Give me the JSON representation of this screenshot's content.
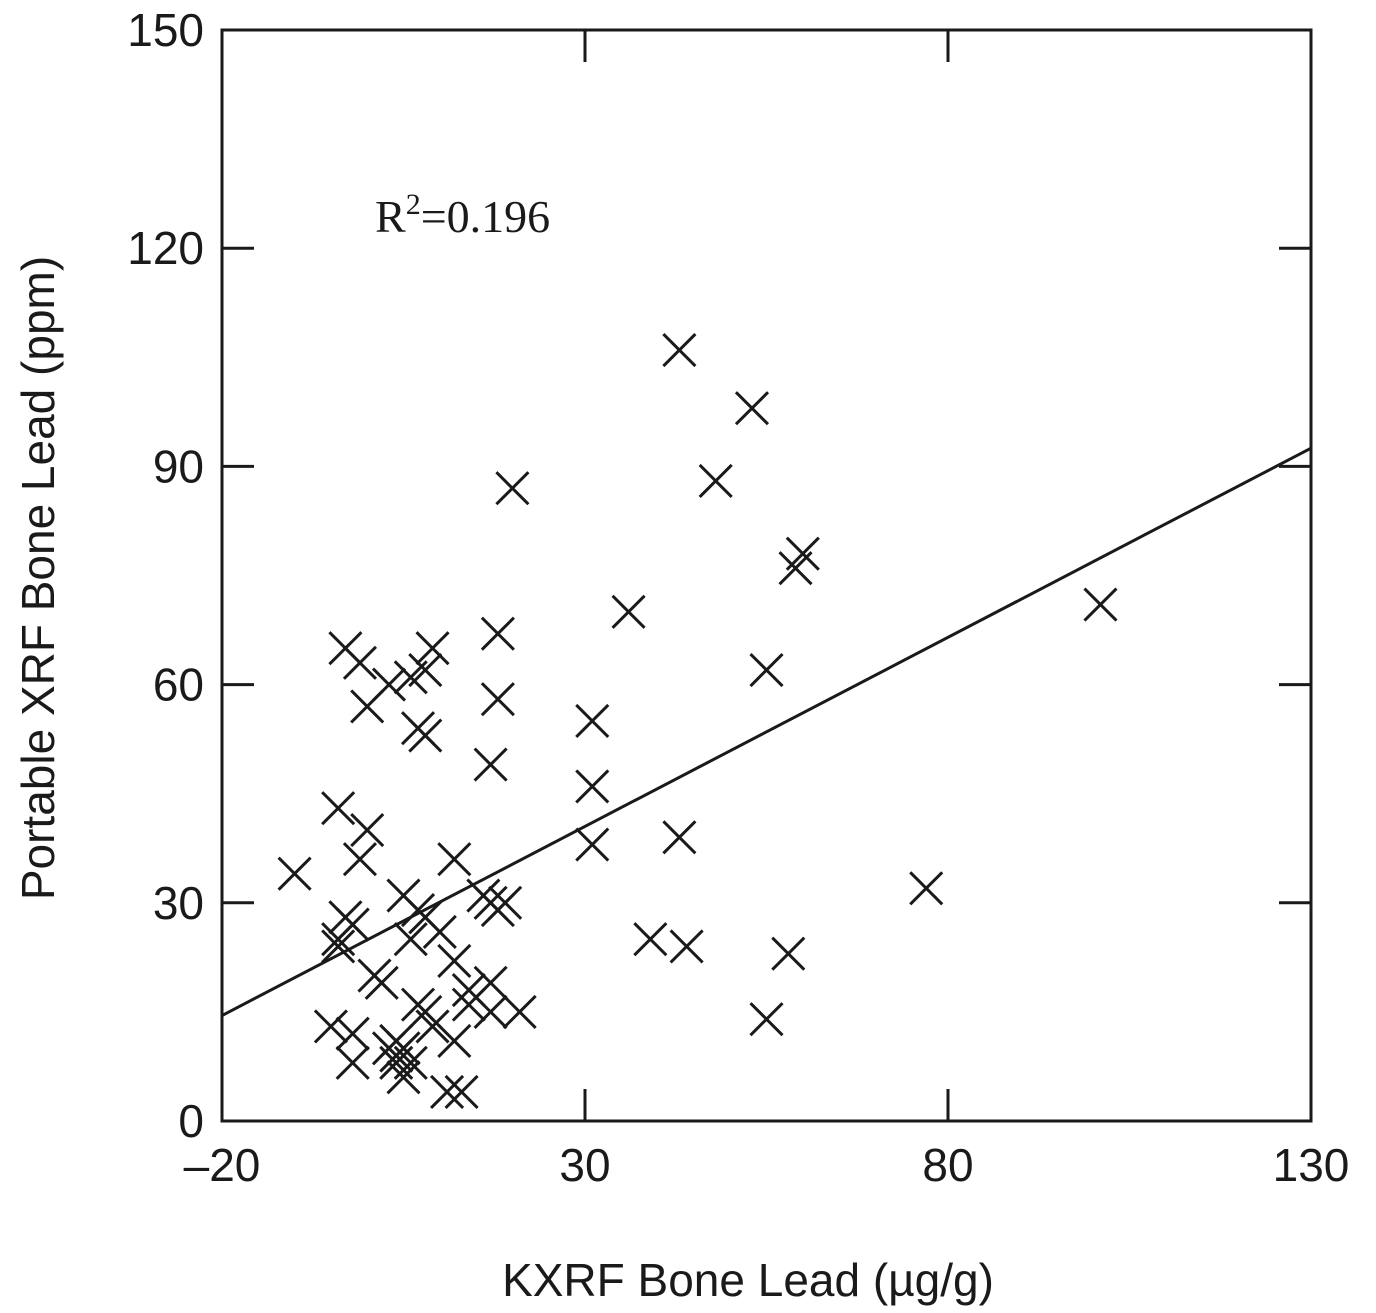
{
  "chart_data": {
    "type": "scatter",
    "xlabel": "KXRF Bone Lead (µg/g)",
    "ylabel": "Portable XRF Bone Lead (ppm)",
    "xlim": [
      -20,
      130
    ],
    "ylim": [
      0,
      150
    ],
    "xticks": [
      -20,
      30,
      80,
      130
    ],
    "xtick_labels": [
      "–20",
      "30",
      "80",
      "130"
    ],
    "yticks": [
      0,
      30,
      60,
      90,
      120,
      150
    ],
    "ytick_labels": [
      "0",
      "30",
      "60",
      "90",
      "120",
      "150"
    ],
    "marker": "x",
    "annotation": {
      "base": "R",
      "sup": "2",
      "rest": "=0.196"
    },
    "regression_line": {
      "x": [
        -20,
        130
      ],
      "y": [
        14.5,
        92.5
      ]
    },
    "grid": false,
    "points": [
      [
        -10,
        34
      ],
      [
        -4,
        43
      ],
      [
        -4,
        25
      ],
      [
        -3,
        28
      ],
      [
        -3,
        65
      ],
      [
        -2,
        27
      ],
      [
        -2,
        12
      ],
      [
        -1,
        63
      ],
      [
        -1,
        36
      ],
      [
        0,
        57
      ],
      [
        0,
        40
      ],
      [
        -2,
        8
      ],
      [
        -5,
        13
      ],
      [
        -4,
        24
      ],
      [
        1,
        20
      ],
      [
        2,
        19
      ],
      [
        3,
        60
      ],
      [
        3,
        10
      ],
      [
        4,
        11
      ],
      [
        4,
        9
      ],
      [
        4,
        8
      ],
      [
        5,
        10
      ],
      [
        5,
        6
      ],
      [
        6,
        8
      ],
      [
        5,
        31
      ],
      [
        6,
        25
      ],
      [
        6,
        61
      ],
      [
        7,
        54
      ],
      [
        7,
        29
      ],
      [
        7,
        16
      ],
      [
        8,
        53
      ],
      [
        8,
        62
      ],
      [
        8,
        15
      ],
      [
        8,
        28
      ],
      [
        9,
        65
      ],
      [
        9,
        13
      ],
      [
        10,
        26
      ],
      [
        12,
        36
      ],
      [
        12,
        22
      ],
      [
        12,
        11
      ],
      [
        11,
        4
      ],
      [
        13,
        4
      ],
      [
        14,
        16
      ],
      [
        14,
        18
      ],
      [
        16,
        31
      ],
      [
        17,
        30
      ],
      [
        17,
        49
      ],
      [
        17,
        15
      ],
      [
        17,
        19
      ],
      [
        18,
        29
      ],
      [
        18,
        67
      ],
      [
        18,
        58
      ],
      [
        19,
        30
      ],
      [
        20,
        87
      ],
      [
        21,
        15
      ],
      [
        31,
        55
      ],
      [
        31,
        46
      ],
      [
        31,
        38
      ],
      [
        36,
        70
      ],
      [
        39,
        25
      ],
      [
        43,
        39
      ],
      [
        43,
        106
      ],
      [
        44,
        24
      ],
      [
        48,
        88
      ],
      [
        53,
        98
      ],
      [
        55,
        62
      ],
      [
        55,
        14
      ],
      [
        58,
        23
      ],
      [
        59,
        76
      ],
      [
        60,
        78
      ],
      [
        77,
        32
      ],
      [
        101,
        71
      ]
    ]
  }
}
